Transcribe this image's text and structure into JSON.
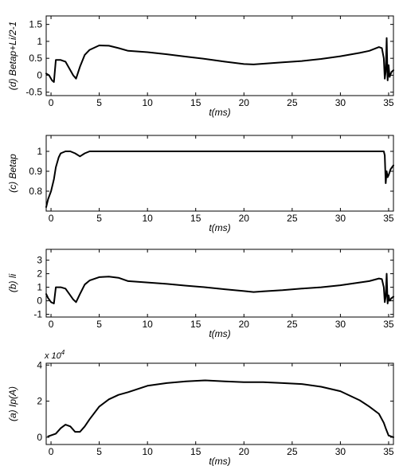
{
  "chart_data": [
    {
      "type": "line",
      "ylabel": "(d) Betap+Li/2-1",
      "xlabel": "t(ms)",
      "xlim": [
        -0.5,
        35.5
      ],
      "ylim": [
        -0.6,
        1.75
      ],
      "xticks": [
        0,
        5,
        10,
        15,
        20,
        25,
        30,
        35
      ],
      "yticks": [
        -0.5,
        0,
        0.5,
        1,
        1.5
      ],
      "ytick_labels": [
        "-0.5",
        "0",
        "0.5",
        "1",
        "1.5"
      ],
      "series": [
        {
          "x": [
            -0.5,
            -0.2,
            0.1,
            0.3,
            0.5,
            1,
            1.5,
            2,
            2.3,
            2.6,
            3,
            3.5,
            4,
            5,
            6,
            7,
            8,
            10,
            12,
            14,
            16,
            18,
            20,
            21,
            22,
            24,
            26,
            28,
            30,
            32,
            33,
            34,
            34.3,
            34.5,
            34.6,
            34.7,
            34.8,
            34.9,
            35,
            35.1,
            35.3,
            35.5
          ],
          "y": [
            0.05,
            0,
            -0.15,
            -0.2,
            0.45,
            0.45,
            0.4,
            0.15,
            0,
            -0.1,
            0.25,
            0.6,
            0.75,
            0.88,
            0.87,
            0.8,
            0.72,
            0.68,
            0.62,
            0.55,
            0.48,
            0.4,
            0.33,
            0.32,
            0.34,
            0.38,
            0.42,
            0.48,
            0.56,
            0.66,
            0.72,
            0.83,
            0.8,
            0.5,
            -0.1,
            0.1,
            1.1,
            -0.15,
            0.3,
            -0.05,
            0.1,
            0.15
          ]
        }
      ]
    },
    {
      "type": "line",
      "ylabel": "(c) Betap",
      "xlabel": "t(ms)",
      "xlim": [
        -0.5,
        35.5
      ],
      "ylim": [
        0.7,
        1.08
      ],
      "xticks": [
        0,
        5,
        10,
        15,
        20,
        25,
        30,
        35
      ],
      "yticks": [
        0.8,
        0.9,
        1
      ],
      "ytick_labels": [
        "0.8",
        "0.9",
        "1"
      ],
      "series": [
        {
          "x": [
            -0.5,
            -0.3,
            0,
            0.3,
            0.5,
            0.8,
            1,
            1.5,
            2,
            2.5,
            3,
            3.5,
            4,
            5,
            10,
            20,
            30,
            34.5,
            34.6,
            34.7,
            34.8,
            34.9,
            35,
            35.2,
            35.5
          ],
          "y": [
            0.72,
            0.76,
            0.8,
            0.86,
            0.92,
            0.97,
            0.99,
            1.0,
            1.0,
            0.99,
            0.975,
            0.99,
            1.0,
            1.0,
            1.0,
            1.0,
            1.0,
            1.0,
            0.98,
            0.84,
            0.9,
            0.87,
            0.88,
            0.91,
            0.93
          ]
        }
      ]
    },
    {
      "type": "line",
      "ylabel": "(b) li",
      "xlabel": "t(ms)",
      "xlim": [
        -0.5,
        35.5
      ],
      "ylim": [
        -1.2,
        3.8
      ],
      "xticks": [
        0,
        5,
        10,
        15,
        20,
        25,
        30,
        35
      ],
      "yticks": [
        -1,
        0,
        1,
        2,
        3
      ],
      "ytick_labels": [
        "-1",
        "0",
        "1",
        "2",
        "3"
      ],
      "series": [
        {
          "x": [
            -0.5,
            -0.3,
            0,
            0.3,
            0.5,
            1,
            1.5,
            2,
            2.3,
            2.6,
            3,
            3.5,
            4,
            5,
            6,
            7,
            8,
            10,
            12,
            14,
            16,
            18,
            20,
            21,
            22,
            24,
            26,
            28,
            30,
            32,
            33,
            34,
            34.3,
            34.5,
            34.6,
            34.7,
            34.8,
            34.9,
            35,
            35.1,
            35.3,
            35.5
          ],
          "y": [
            0.5,
            0.2,
            -0.1,
            -0.2,
            1.0,
            1.0,
            0.9,
            0.4,
            0.1,
            -0.1,
            0.5,
            1.2,
            1.5,
            1.75,
            1.78,
            1.7,
            1.45,
            1.35,
            1.25,
            1.12,
            1.0,
            0.85,
            0.72,
            0.65,
            0.7,
            0.78,
            0.9,
            1.0,
            1.15,
            1.35,
            1.45,
            1.65,
            1.6,
            1.0,
            -0.1,
            0.3,
            2.0,
            -0.2,
            0.4,
            0.0,
            0.2,
            0.3
          ]
        }
      ]
    },
    {
      "type": "line",
      "ylabel": "(a) Ip(A)",
      "xlabel": "t(ms)",
      "xlim": [
        -0.5,
        35.5
      ],
      "ylim": [
        -0.4,
        4.1
      ],
      "y_exponent": "x 10",
      "y_exponent_power": "4",
      "xticks": [
        0,
        5,
        10,
        15,
        20,
        25,
        30,
        35
      ],
      "yticks": [
        0,
        2,
        4
      ],
      "ytick_labels": [
        "0",
        "2",
        "4"
      ],
      "series": [
        {
          "x": [
            -0.3,
            0.5,
            1,
            1.5,
            2,
            2.5,
            3,
            3.5,
            4,
            5,
            6,
            7,
            8,
            10,
            12,
            14,
            16,
            18,
            20,
            22,
            24,
            26,
            28,
            30,
            32,
            33,
            34,
            34.5,
            34.7,
            35,
            35.5
          ],
          "y": [
            0.05,
            0.2,
            0.5,
            0.7,
            0.6,
            0.3,
            0.3,
            0.6,
            1.0,
            1.7,
            2.1,
            2.35,
            2.5,
            2.85,
            3.0,
            3.1,
            3.15,
            3.1,
            3.05,
            3.05,
            3.0,
            2.95,
            2.8,
            2.55,
            2.05,
            1.7,
            1.3,
            0.8,
            0.5,
            0.1,
            0.0
          ]
        }
      ]
    }
  ]
}
